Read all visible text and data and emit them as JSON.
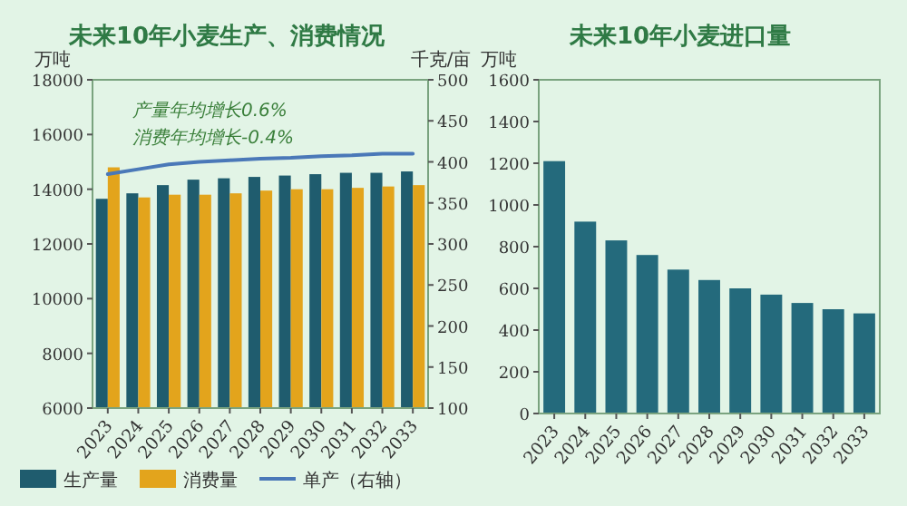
{
  "chart_data": [
    {
      "type": "bar",
      "title": "未来10年小麦生产、消费情况",
      "ylabel": "万吨",
      "y2label": "千克/亩",
      "categories": [
        "2023",
        "2024",
        "2025",
        "2026",
        "2027",
        "2028",
        "2029",
        "2030",
        "2031",
        "2032",
        "2033"
      ],
      "series": [
        {
          "name": "生产量",
          "color": "#1f5c6e",
          "values": [
            13650,
            13850,
            14150,
            14350,
            14400,
            14450,
            14500,
            14550,
            14600,
            14600,
            14650
          ]
        },
        {
          "name": "消费量",
          "color": "#e3a41c",
          "values": [
            14800,
            13700,
            13800,
            13800,
            13850,
            13950,
            14000,
            14000,
            14050,
            14100,
            14150
          ]
        },
        {
          "name": "单产（右轴）",
          "type": "line",
          "axis": "y2",
          "color": "#4a78b8",
          "values": [
            385,
            391,
            397,
            400,
            402,
            404,
            405,
            407,
            408,
            410,
            410
          ]
        }
      ],
      "ylim": [
        6000,
        18000
      ],
      "yticks": [
        6000,
        8000,
        10000,
        12000,
        14000,
        16000,
        18000
      ],
      "y2lim": [
        100,
        500
      ],
      "y2ticks": [
        100,
        150,
        200,
        250,
        300,
        350,
        400,
        450,
        500
      ],
      "annotations": [
        "产量年均增长0.6%",
        "消费年均增长-0.4%"
      ],
      "legend": "bottom",
      "marker": "none",
      "line_style": "solid"
    },
    {
      "type": "bar",
      "title": "未来10年小麦进口量",
      "ylabel": "万吨",
      "categories": [
        "2023",
        "2024",
        "2025",
        "2026",
        "2027",
        "2028",
        "2029",
        "2030",
        "2031",
        "2032",
        "2033"
      ],
      "series": [
        {
          "color": "#246a7c",
          "values": [
            1210,
            920,
            830,
            760,
            690,
            640,
            600,
            570,
            530,
            500,
            480
          ]
        }
      ],
      "ylim": [
        0,
        1600
      ],
      "yticks": [
        0,
        200,
        400,
        600,
        800,
        1000,
        1200,
        1400,
        1600
      ]
    }
  ]
}
